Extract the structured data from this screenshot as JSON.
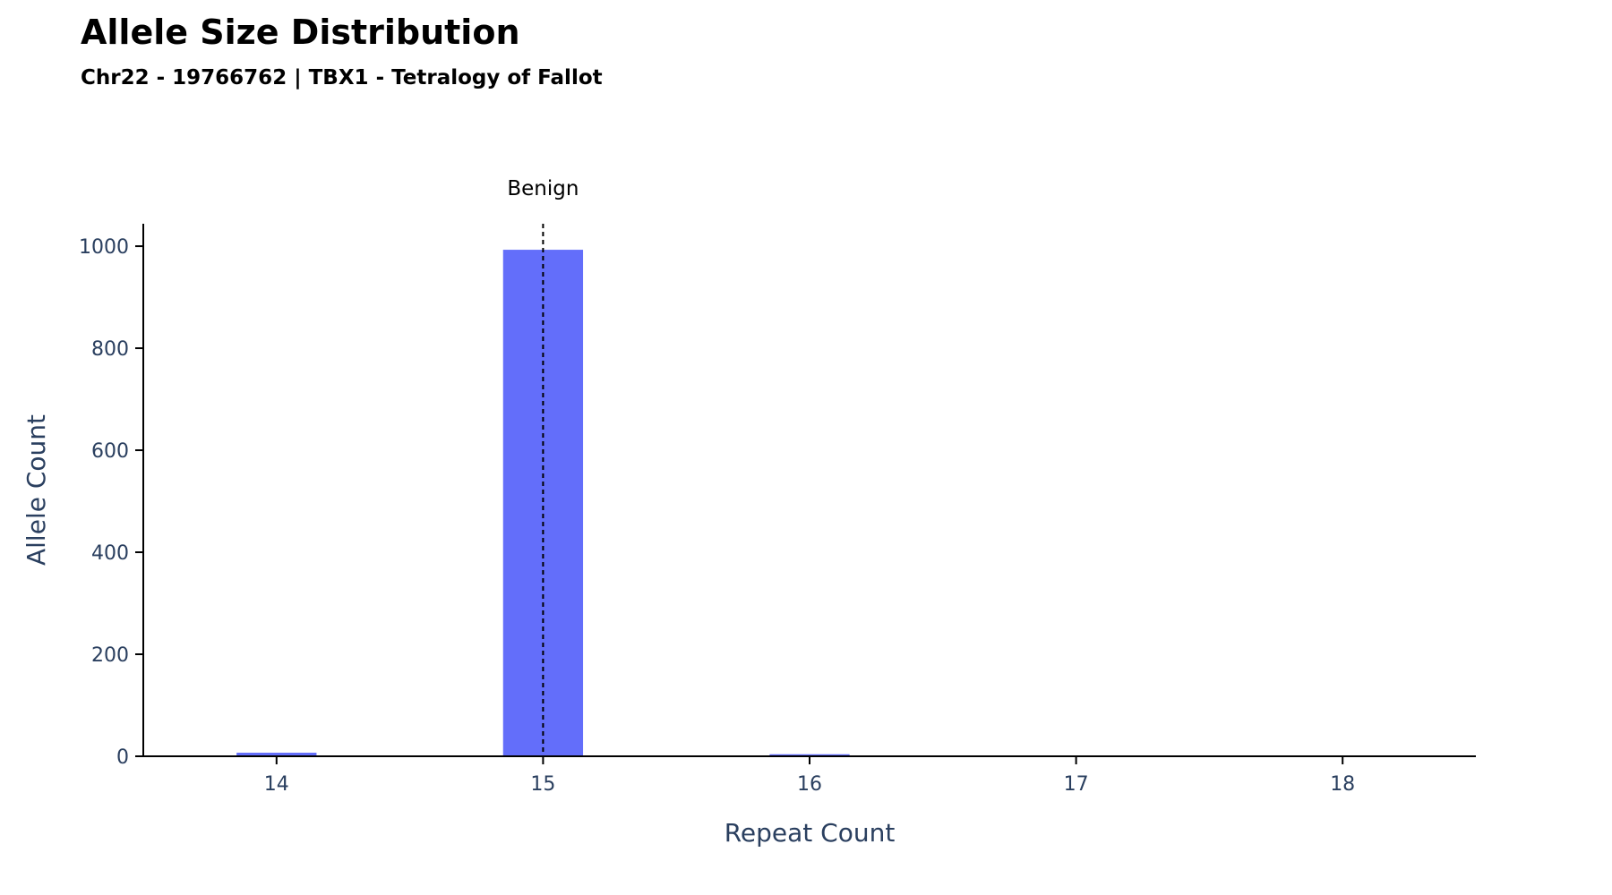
{
  "chart_data": {
    "type": "bar",
    "title": "Allele Size Distribution",
    "subtitle": "Chr22 - 19766762 | TBX1 - Tetralogy of Fallot",
    "xlabel": "Repeat Count",
    "ylabel": "Allele Count",
    "x": [
      14,
      15,
      16,
      17,
      18
    ],
    "values": [
      7,
      993,
      4,
      0,
      0
    ],
    "xlim": [
      13.5,
      18.5
    ],
    "ylim": [
      0,
      1044
    ],
    "x_ticks": [
      14,
      15,
      16,
      17,
      18
    ],
    "y_ticks": [
      0,
      200,
      400,
      600,
      800,
      1000
    ],
    "grid": false,
    "bar_color": "#636efa",
    "annotations": [
      {
        "x": 15,
        "label": "Benign",
        "line_style": "dashed",
        "color": "#000000"
      }
    ]
  }
}
